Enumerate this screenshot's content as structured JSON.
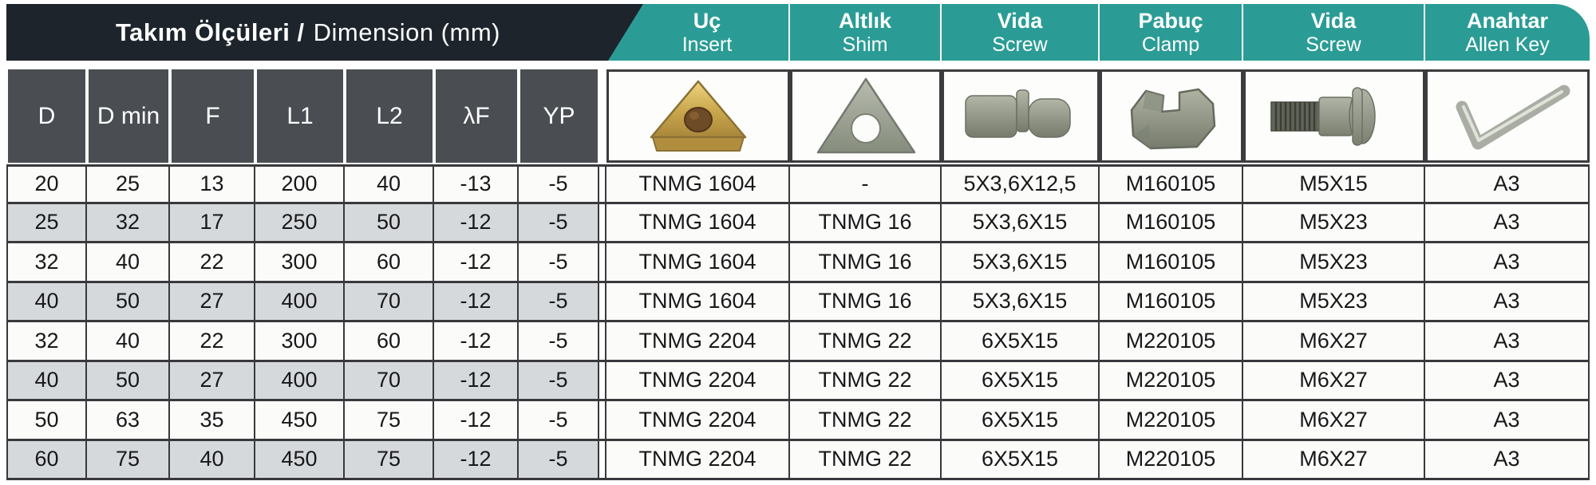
{
  "title": {
    "tr": "Takım Ölçüleri /",
    "en": "Dimension (mm)"
  },
  "dimension_headers": [
    "D",
    "D min",
    "F",
    "L1",
    "L2",
    "λF",
    "YP"
  ],
  "component_headers": [
    {
      "tr": "Uç",
      "en": "Insert",
      "icon": "insert-icon"
    },
    {
      "tr": "Altlık",
      "en": "Shim",
      "icon": "shim-icon"
    },
    {
      "tr": "Vida",
      "en": "Screw",
      "icon": "screw-pin-icon"
    },
    {
      "tr": "Pabuç",
      "en": "Clamp",
      "icon": "clamp-icon"
    },
    {
      "tr": "Vida",
      "en": "Screw",
      "icon": "bolt-icon"
    },
    {
      "tr": "Anahtar",
      "en": "Allen Key",
      "icon": "allen-key-icon"
    }
  ],
  "colors": {
    "teal": "#2a9c95",
    "banner_dark": "#1d242b",
    "header_gray": "#4a4d52",
    "row_alt_gray": "#d6d9db",
    "row_white": "#fbfbf9",
    "border": "#39393d",
    "insert_gold": "#c9a64c",
    "metal_gray": "#8f9486"
  },
  "table": {
    "rows": [
      {
        "cells": [
          "20",
          "25",
          "13",
          "200",
          "40",
          "-13",
          "-5",
          "TNMG 1604",
          "-",
          "5X3,6X12,5",
          "M160105",
          "M5X15",
          "A3"
        ]
      },
      {
        "cells": [
          "25",
          "32",
          "17",
          "250",
          "50",
          "-12",
          "-5",
          "TNMG 1604",
          "TNMG 16",
          "5X3,6X15",
          "M160105",
          "M5X23",
          "A3"
        ]
      },
      {
        "cells": [
          "32",
          "40",
          "22",
          "300",
          "60",
          "-12",
          "-5",
          "TNMG 1604",
          "TNMG 16",
          "5X3,6X15",
          "M160105",
          "M5X23",
          "A3"
        ]
      },
      {
        "cells": [
          "40",
          "50",
          "27",
          "400",
          "70",
          "-12",
          "-5",
          "TNMG 1604",
          "TNMG 16",
          "5X3,6X15",
          "M160105",
          "M5X23",
          "A3"
        ]
      },
      {
        "cells": [
          "32",
          "40",
          "22",
          "300",
          "60",
          "-12",
          "-5",
          "TNMG 2204",
          "TNMG 22",
          "6X5X15",
          "M220105",
          "M6X27",
          "A3"
        ]
      },
      {
        "cells": [
          "40",
          "50",
          "27",
          "400",
          "70",
          "-12",
          "-5",
          "TNMG 2204",
          "TNMG 22",
          "6X5X15",
          "M220105",
          "M6X27",
          "A3"
        ]
      },
      {
        "cells": [
          "50",
          "63",
          "35",
          "450",
          "75",
          "-12",
          "-5",
          "TNMG 2204",
          "TNMG 22",
          "6X5X15",
          "M220105",
          "M6X27",
          "A3"
        ]
      },
      {
        "cells": [
          "60",
          "75",
          "40",
          "450",
          "75",
          "-12",
          "-5",
          "TNMG 2204",
          "TNMG 22",
          "6X5X15",
          "M220105",
          "M6X27",
          "A3"
        ]
      }
    ]
  }
}
